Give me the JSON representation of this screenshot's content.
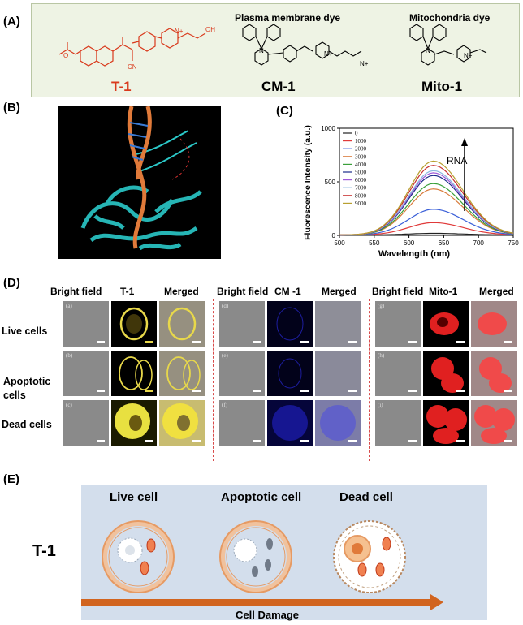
{
  "figure": {
    "panel_labels": {
      "a": "(A)",
      "b": "(B)",
      "c": "(C)",
      "d": "(D)",
      "e": "(E)"
    },
    "panel_a": {
      "plasma_title": "Plasma membrane dye",
      "mito_title": "Mitochondria dye",
      "names": {
        "t1": "T-1",
        "cm1": "CM-1",
        "mito1": "Mito-1"
      },
      "atoms": {
        "oh": "OH",
        "cn": "CN",
        "n": "N",
        "n_plus": "N+",
        "o": "O"
      }
    },
    "panel_d": {
      "col_heads": [
        "Bright field",
        "T-1",
        "Merged",
        "Bright field",
        "CM -1",
        "Merged",
        "Bright field",
        "Mito-1",
        "Merged"
      ],
      "row_labels": [
        "Live cells",
        "Apoptotic\ncells",
        "Dead cells"
      ],
      "tile_letters": [
        "(a)",
        "(b)",
        "(c)",
        "(d)",
        "(e)",
        "(f)",
        "(g)",
        "(h)",
        "(i)"
      ]
    },
    "panel_e": {
      "cell_labels": [
        "Live cell",
        "Apoptotic cell",
        "Dead cell"
      ],
      "probe": "T-1",
      "arrow_label": "Cell Damage"
    },
    "colors": {
      "t1_red": "#d9391c",
      "panelA_bg": "#eef3e4",
      "panelE_bg": "#d3deec",
      "yellow_fluor": "#e8d84a",
      "blue_fluor": "#2a2ad8",
      "red_fluor": "#e02020",
      "membrane_orange": "#e69a63",
      "arrow_orange": "#d1641f"
    }
  },
  "chart_data": {
    "type": "line",
    "xlabel": "Wavelength (nm)",
    "ylabel": "Fluorescence Intensity (a.u.)",
    "xlim": [
      500,
      750
    ],
    "ylim": [
      0,
      1000
    ],
    "xticks": [
      500,
      550,
      600,
      650,
      700,
      750
    ],
    "yticks": [
      0,
      500,
      1000
    ],
    "legend_position": "top-left",
    "annotation": "RNA",
    "peak_x": 635,
    "series": [
      {
        "name": "0",
        "color": "#222222",
        "peak": 15
      },
      {
        "name": "1000",
        "color": "#e03a3a",
        "peak": 115
      },
      {
        "name": "2000",
        "color": "#3a5fd8",
        "peak": 240
      },
      {
        "name": "3000",
        "color": "#d87a3a",
        "peak": 430
      },
      {
        "name": "4000",
        "color": "#3aa03a",
        "peak": 480
      },
      {
        "name": "5000",
        "color": "#1a2a8a",
        "peak": 555
      },
      {
        "name": "6000",
        "color": "#a05ad8",
        "peak": 580
      },
      {
        "name": "7000",
        "color": "#8ab8e0",
        "peak": 600
      },
      {
        "name": "8000",
        "color": "#c83030",
        "peak": 650
      },
      {
        "name": "9000",
        "color": "#b8a030",
        "peak": 690
      }
    ]
  }
}
